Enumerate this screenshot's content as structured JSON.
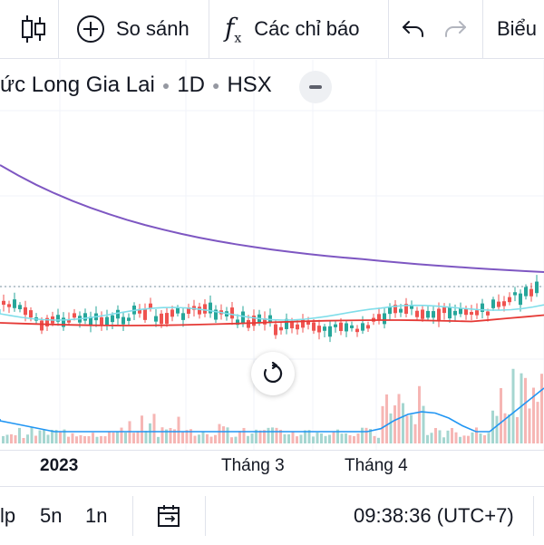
{
  "toolbar": {
    "compare_label": "So sánh",
    "indicators_label": "Các chỉ báo",
    "chart_label": "Biểu",
    "fx_icon_text": "f",
    "fx_icon_sub": "x"
  },
  "legend": {
    "symbol_partial": "ức Long Gia Lai",
    "interval": "1D",
    "exchange": "HSX"
  },
  "time_axis": {
    "labels": [
      "2023",
      "Tháng 3",
      "Tháng 4"
    ]
  },
  "bottom_bar": {
    "ranges": [
      "lp",
      "5n",
      "1n"
    ],
    "clock": "09:38:36 (UTC+7)"
  },
  "colors": {
    "up": "#26a69a",
    "down": "#ef5350",
    "long_ma": "#7e57c2",
    "short_ma": "#80deea",
    "mid_ma": "#e53935",
    "volume_ma": "#2196f3",
    "grid": "#f0f3fa"
  },
  "icons": {
    "chart_type": "candlestick-icon",
    "compare": "plus-circle-icon",
    "indicators": "function-icon",
    "undo": "undo-icon",
    "redo": "redo-icon",
    "reset": "reset-icon",
    "date_range": "calendar-icon"
  }
}
